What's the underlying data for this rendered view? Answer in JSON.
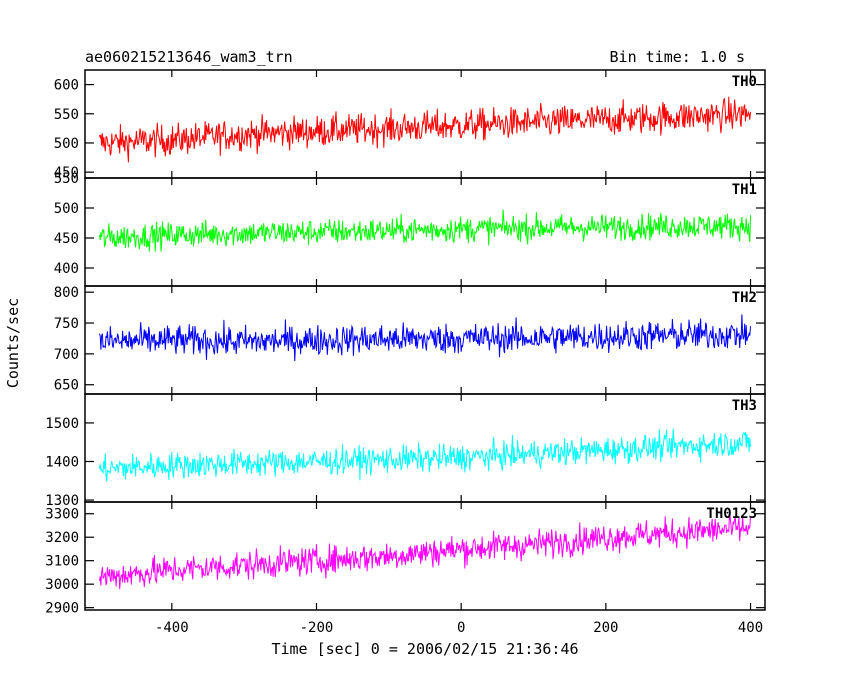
{
  "chart_data": {
    "type": "line",
    "title": "ae060215213646_wam3_trn",
    "subtitle": "Bin time: 1.0 s",
    "xlabel": "Time [sec] 0 = 2006/02/15 21:36:46",
    "ylabel": "Counts/sec",
    "xlim": [
      -520,
      420
    ],
    "x_ticks": [
      -400,
      -200,
      0,
      200,
      400
    ],
    "grid": false,
    "panels": [
      {
        "name": "TH0",
        "color": "#ff0000",
        "ylim": [
          440,
          625
        ],
        "y_ticks": [
          450,
          500,
          550,
          600
        ],
        "x": [
          -500,
          -400,
          -300,
          -200,
          -100,
          0,
          100,
          200,
          300,
          400
        ],
        "values": [
          500,
          505,
          515,
          520,
          525,
          530,
          535,
          540,
          545,
          550
        ],
        "spread": 35
      },
      {
        "name": "TH1",
        "color": "#00ff00",
        "ylim": [
          370,
          550
        ],
        "y_ticks": [
          400,
          450,
          500,
          550
        ],
        "x": [
          -500,
          -400,
          -300,
          -200,
          -100,
          0,
          100,
          200,
          300,
          400
        ],
        "values": [
          450,
          455,
          458,
          460,
          462,
          465,
          467,
          468,
          470,
          470
        ],
        "spread": 28
      },
      {
        "name": "TH2",
        "color": "#0000ff",
        "ylim": [
          635,
          810
        ],
        "y_ticks": [
          650,
          700,
          750,
          800
        ],
        "x": [
          -500,
          -400,
          -300,
          -200,
          -100,
          0,
          100,
          200,
          300,
          400
        ],
        "values": [
          720,
          722,
          720,
          722,
          724,
          725,
          726,
          728,
          730,
          732
        ],
        "spread": 32
      },
      {
        "name": "TH3",
        "color": "#00ffff",
        "ylim": [
          1295,
          1575
        ],
        "y_ticks": [
          1300,
          1400,
          1500
        ],
        "x": [
          -500,
          -400,
          -300,
          -200,
          -100,
          0,
          100,
          200,
          300,
          400
        ],
        "values": [
          1380,
          1390,
          1395,
          1400,
          1405,
          1410,
          1420,
          1430,
          1440,
          1450
        ],
        "spread": 45
      },
      {
        "name": "TH0123",
        "color": "#ff00ff",
        "ylim": [
          2890,
          3350
        ],
        "y_ticks": [
          2900,
          3000,
          3100,
          3200,
          3300
        ],
        "x": [
          -500,
          -400,
          -300,
          -200,
          -100,
          0,
          100,
          200,
          300,
          400
        ],
        "values": [
          3030,
          3060,
          3080,
          3100,
          3120,
          3150,
          3170,
          3200,
          3220,
          3240
        ],
        "spread": 80
      }
    ]
  }
}
